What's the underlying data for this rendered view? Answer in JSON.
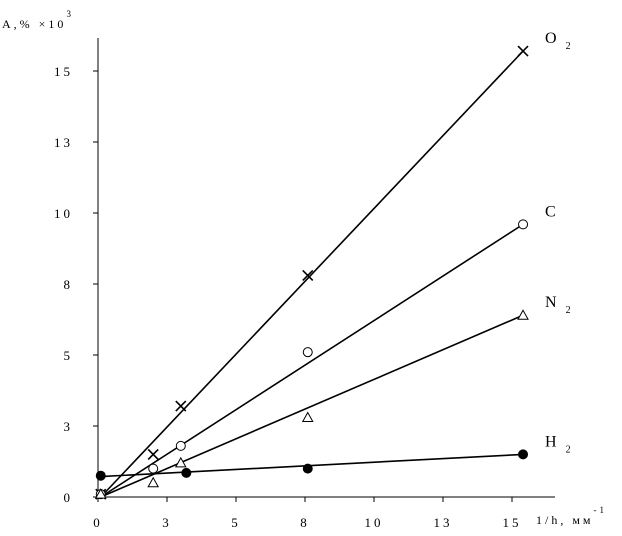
{
  "chart_data": {
    "type": "scatter",
    "ylabel": "A",
    "ylabel_suffix": ",% ×10",
    "ylabel_sup": "3",
    "xlabel": "1/h, мм",
    "xlabel_sup": "-1",
    "xlim": [
      0,
      16.5
    ],
    "ylim": [
      0,
      16.5
    ],
    "xticks": [
      {
        "v": 0,
        "label": "0"
      },
      {
        "v": 2.5,
        "label": "3"
      },
      {
        "v": 5,
        "label": "5"
      },
      {
        "v": 7.5,
        "label": "8"
      },
      {
        "v": 10,
        "label": "10"
      },
      {
        "v": 12.5,
        "label": "13"
      },
      {
        "v": 15,
        "label": "15"
      }
    ],
    "yticks": [
      {
        "v": 0,
        "label": "0"
      },
      {
        "v": 2.5,
        "label": "3"
      },
      {
        "v": 5,
        "label": "5"
      },
      {
        "v": 7.5,
        "label": "8"
      },
      {
        "v": 10,
        "label": "10"
      },
      {
        "v": 12.5,
        "label": "13"
      },
      {
        "v": 15,
        "label": "15"
      }
    ],
    "series": [
      {
        "name": "O",
        "sub": "2",
        "marker": "x",
        "points": [
          [
            0.1,
            0.1
          ],
          [
            2,
            1.5
          ],
          [
            3,
            3.2
          ],
          [
            7.6,
            7.8
          ],
          [
            15.4,
            15.7
          ]
        ],
        "fit": [
          [
            0.1,
            0.0
          ],
          [
            15.4,
            15.7
          ]
        ]
      },
      {
        "name": "C",
        "sub": "",
        "marker": "circle",
        "points": [
          [
            0.1,
            0.1
          ],
          [
            2,
            1.0
          ],
          [
            3,
            1.8
          ],
          [
            7.6,
            5.1
          ],
          [
            15.4,
            9.6
          ]
        ],
        "fit": [
          [
            0.1,
            0.0
          ],
          [
            15.4,
            9.6
          ]
        ]
      },
      {
        "name": "N",
        "sub": "2",
        "marker": "triangle",
        "points": [
          [
            0.1,
            0.1
          ],
          [
            2,
            0.5
          ],
          [
            3,
            1.2
          ],
          [
            7.6,
            2.8
          ],
          [
            15.4,
            6.4
          ]
        ],
        "fit": [
          [
            0.1,
            0.0
          ],
          [
            15.4,
            6.4
          ]
        ]
      },
      {
        "name": "H",
        "sub": "2",
        "marker": "dot",
        "points": [
          [
            0.1,
            0.75
          ],
          [
            3.2,
            0.85
          ],
          [
            7.6,
            1.0
          ],
          [
            15.4,
            1.5
          ]
        ],
        "fit": [
          [
            0.1,
            0.72
          ],
          [
            15.4,
            1.5
          ]
        ]
      }
    ]
  }
}
